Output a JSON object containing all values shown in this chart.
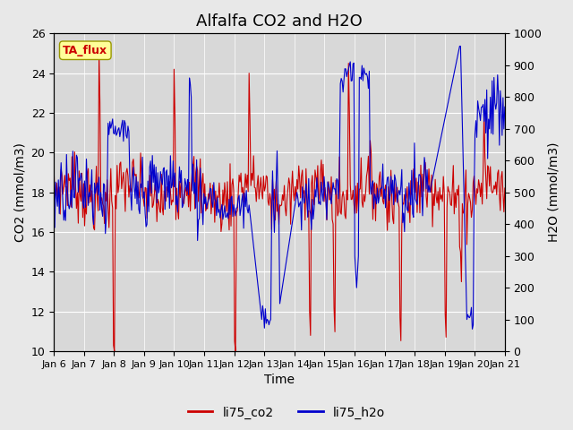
{
  "title": "Alfalfa CO2 and H2O",
  "xlabel": "Time",
  "ylabel_left": "CO2 (mmol/m3)",
  "ylabel_right": "H2O (mmol/m3)",
  "ylim_left": [
    10,
    26
  ],
  "ylim_right": [
    0,
    1000
  ],
  "yticks_left": [
    10,
    12,
    14,
    16,
    18,
    20,
    22,
    24,
    26
  ],
  "yticks_right": [
    0,
    100,
    200,
    300,
    400,
    500,
    600,
    700,
    800,
    900,
    1000
  ],
  "xtick_labels": [
    "Jan 6",
    "Jan 7",
    "Jan 8",
    "Jan 9",
    "Jan 10",
    "Jan 11",
    "Jan 12",
    "Jan 13",
    "Jan 14",
    "Jan 15",
    "Jan 16",
    "Jan 17",
    "Jan 18",
    "Jan 19",
    "Jan 20",
    "Jan 21"
  ],
  "color_co2": "#cc0000",
  "color_h2o": "#0000cc",
  "legend_label_co2": "li75_co2",
  "legend_label_h2o": "li75_h2o",
  "annotation_text": "TA_flux",
  "annotation_color": "#cc0000",
  "annotation_bg": "#ffff99",
  "annotation_border": "#999900",
  "background_color": "#e8e8e8",
  "plot_bg_color": "#d8d8d8",
  "title_fontsize": 13,
  "axis_label_fontsize": 10,
  "tick_fontsize": 9,
  "legend_fontsize": 10
}
